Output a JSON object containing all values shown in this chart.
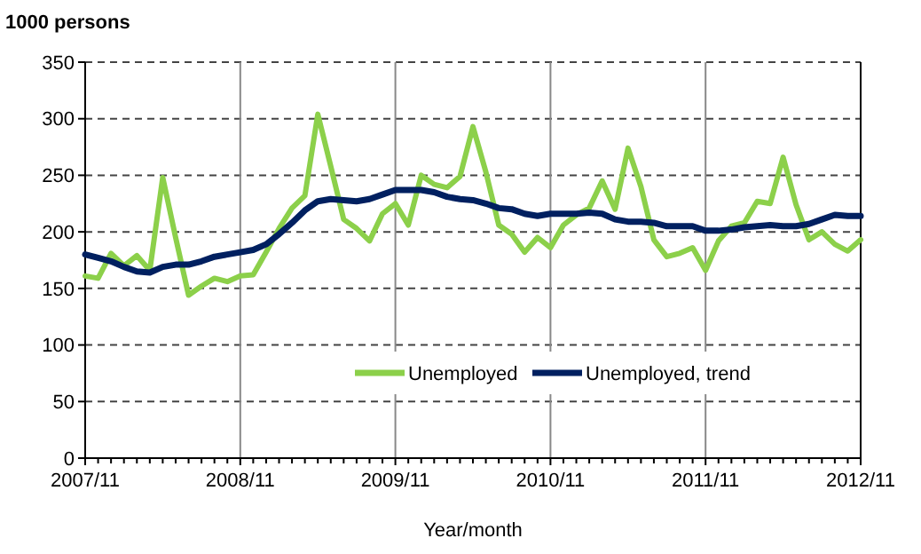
{
  "chart_data": {
    "type": "line",
    "ylabel": "1000 persons",
    "xlabel": "Year/month",
    "categories": [
      "2007/11",
      null,
      null,
      null,
      null,
      null,
      null,
      null,
      null,
      null,
      null,
      null,
      "2008/11",
      null,
      null,
      null,
      null,
      null,
      null,
      null,
      null,
      null,
      null,
      null,
      "2009/11",
      null,
      null,
      null,
      null,
      null,
      null,
      null,
      null,
      null,
      null,
      null,
      "2010/11",
      null,
      null,
      null,
      null,
      null,
      null,
      null,
      null,
      null,
      null,
      null,
      "2011/11",
      null,
      null,
      null,
      null,
      null,
      null,
      null,
      null,
      null,
      null,
      null,
      "2012/11"
    ],
    "series": [
      {
        "name": "Unemployed",
        "color": "#8cd04a",
        "values": [
          161,
          159,
          181,
          170,
          179,
          166,
          248,
          195,
          144,
          152,
          159,
          156,
          161,
          162,
          182,
          203,
          221,
          232,
          304,
          258,
          211,
          203,
          192,
          216,
          225,
          206,
          250,
          242,
          239,
          249,
          293,
          253,
          206,
          198,
          182,
          195,
          186,
          206,
          215,
          221,
          245,
          220,
          274,
          240,
          193,
          178,
          181,
          186,
          166,
          192,
          205,
          208,
          227,
          225,
          266,
          224,
          193,
          200,
          189,
          183,
          193
        ]
      },
      {
        "name": "Unemployed, trend",
        "color": "#002060",
        "values": [
          180,
          177,
          174,
          169,
          165,
          164,
          169,
          171,
          171,
          174,
          178,
          180,
          182,
          184,
          189,
          198,
          208,
          219,
          227,
          229,
          228,
          227,
          229,
          233,
          237,
          237,
          237,
          235,
          231,
          229,
          228,
          225,
          221,
          220,
          216,
          214,
          216,
          216,
          216,
          217,
          216,
          211,
          209,
          209,
          208,
          205,
          205,
          205,
          201,
          201,
          202,
          204,
          205,
          206,
          205,
          205,
          207,
          211,
          215,
          214,
          214
        ]
      }
    ],
    "ylim": [
      0,
      350
    ],
    "yticks": [
      0,
      50,
      100,
      150,
      200,
      250,
      300,
      350
    ],
    "grid": true,
    "legend": "bottom"
  }
}
